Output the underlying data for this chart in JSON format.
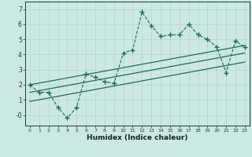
{
  "xlabel": "Humidex (Indice chaleur)",
  "bg_color": "#cce8e2",
  "line_color": "#1a6e5a",
  "grid_color": "#b0d4cc",
  "x_data": [
    0,
    1,
    2,
    3,
    4,
    5,
    6,
    7,
    8,
    9,
    10,
    11,
    12,
    13,
    14,
    15,
    16,
    17,
    18,
    19,
    20,
    21,
    22,
    23
  ],
  "y_data": [
    2.0,
    1.5,
    1.5,
    0.5,
    -0.2,
    0.5,
    2.7,
    2.5,
    2.2,
    2.1,
    4.1,
    4.3,
    6.8,
    5.9,
    5.2,
    5.3,
    5.3,
    6.0,
    5.3,
    5.0,
    4.5,
    2.8,
    4.9,
    4.5
  ],
  "trend_lines": [
    {
      "x": [
        0,
        23
      ],
      "y": [
        2.0,
        4.6
      ]
    },
    {
      "x": [
        0,
        23
      ],
      "y": [
        1.5,
        4.1
      ]
    },
    {
      "x": [
        0,
        23
      ],
      "y": [
        0.9,
        3.5
      ]
    }
  ],
  "ylim": [
    -0.7,
    7.5
  ],
  "xlim": [
    -0.5,
    23.5
  ],
  "yticks": [
    0,
    1,
    2,
    3,
    4,
    5,
    6,
    7
  ],
  "ytick_labels": [
    "-0",
    "1",
    "2",
    "3",
    "4",
    "5",
    "6",
    "7"
  ],
  "xticks": [
    0,
    1,
    2,
    3,
    4,
    5,
    6,
    7,
    8,
    9,
    10,
    11,
    12,
    13,
    14,
    15,
    16,
    17,
    18,
    19,
    20,
    21,
    22,
    23
  ]
}
